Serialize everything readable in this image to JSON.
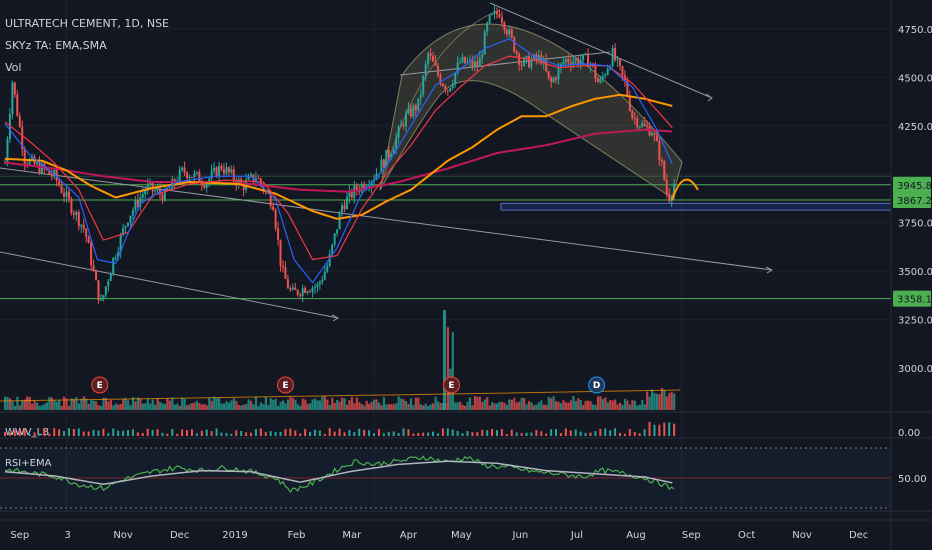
{
  "legend": {
    "title": "ULTRATECH CEMENT, 1D, NSE",
    "indicator": "SKYz TA: EMA,SMA",
    "volume": "Vol"
  },
  "chart_data": {
    "type": "candlestick",
    "title": "ULTRATECH CEMENT, 1D, NSE",
    "x_labels": [
      "Sep",
      "3",
      "Nov",
      "Dec",
      "2019",
      "Feb",
      "Mar",
      "Apr",
      "May",
      "Jun",
      "Jul",
      "Aug",
      "Sep",
      "Oct",
      "Nov",
      "Dec"
    ],
    "price_ticks": [
      4750,
      4500,
      4250,
      4000,
      3750,
      3500,
      3250,
      3000
    ],
    "price_tick_labels": [
      "4750.00",
      "4500.00",
      "4250.00",
      "3750.00",
      "3500.00",
      "3250.00",
      "3000.00"
    ],
    "ylim": [
      2950,
      4870
    ],
    "price_tags": [
      {
        "label": "3945.80",
        "value": 3945.8,
        "color": "#4caf50"
      },
      {
        "label": "3867.25",
        "value": 3867.25,
        "color": "#4caf50"
      },
      {
        "label": "3358.10",
        "value": 3358.1,
        "color": "#4caf50"
      }
    ],
    "horizontal_levels": [
      3945.8,
      3867.25,
      3358.1
    ],
    "support_zone": [
      3815,
      3850
    ],
    "price_anchors": [
      {
        "x": 0,
        "v": 4060
      },
      {
        "x": 0.6,
        "v": 4480
      },
      {
        "x": 1.6,
        "v": 4080
      },
      {
        "x": 4,
        "v": 3990
      },
      {
        "x": 6.5,
        "v": 3710
      },
      {
        "x": 7.4,
        "v": 3430
      },
      {
        "x": 7.8,
        "v": 3330
      },
      {
        "x": 8.8,
        "v": 3560
      },
      {
        "x": 10,
        "v": 3780
      },
      {
        "x": 11.5,
        "v": 3930
      },
      {
        "x": 13,
        "v": 3890
      },
      {
        "x": 14.5,
        "v": 4020
      },
      {
        "x": 16.3,
        "v": 3960
      },
      {
        "x": 17.6,
        "v": 4040
      },
      {
        "x": 19.3,
        "v": 3940
      },
      {
        "x": 20.4,
        "v": 3990
      },
      {
        "x": 21.8,
        "v": 3850
      },
      {
        "x": 22.5,
        "v": 3500
      },
      {
        "x": 23.3,
        "v": 3380
      },
      {
        "x": 24.5,
        "v": 3420
      },
      {
        "x": 25.4,
        "v": 3420
      },
      {
        "x": 26.3,
        "v": 3540
      },
      {
        "x": 27.4,
        "v": 3840
      },
      {
        "x": 28.5,
        "v": 3920
      },
      {
        "x": 30,
        "v": 3990
      },
      {
        "x": 31.5,
        "v": 4140
      },
      {
        "x": 32.5,
        "v": 4290
      },
      {
        "x": 33.6,
        "v": 4360
      },
      {
        "x": 34.4,
        "v": 4620
      },
      {
        "x": 35.4,
        "v": 4490
      },
      {
        "x": 36,
        "v": 4440
      },
      {
        "x": 37,
        "v": 4580
      },
      {
        "x": 38.5,
        "v": 4560
      },
      {
        "x": 39.3,
        "v": 4790
      },
      {
        "x": 40.2,
        "v": 4840
      },
      {
        "x": 41,
        "v": 4720
      },
      {
        "x": 42,
        "v": 4570
      },
      {
        "x": 43.6,
        "v": 4600
      },
      {
        "x": 44.3,
        "v": 4460
      },
      {
        "x": 45.5,
        "v": 4590
      },
      {
        "x": 46.5,
        "v": 4590
      },
      {
        "x": 47.5,
        "v": 4590
      },
      {
        "x": 48.3,
        "v": 4460
      },
      {
        "x": 49.4,
        "v": 4620
      },
      {
        "x": 50.4,
        "v": 4470
      },
      {
        "x": 51,
        "v": 4300
      },
      {
        "x": 52,
        "v": 4240
      },
      {
        "x": 52.6,
        "v": 4230
      },
      {
        "x": 53.3,
        "v": 4080
      },
      {
        "x": 53.9,
        "v": 3870
      },
      {
        "x": 54.4,
        "v": 3950
      }
    ],
    "ema_fast_anchors": [
      {
        "x": 0,
        "v": 4260
      },
      {
        "x": 2,
        "v": 4100
      },
      {
        "x": 4,
        "v": 4000
      },
      {
        "x": 6,
        "v": 3880
      },
      {
        "x": 7.5,
        "v": 3560
      },
      {
        "x": 9,
        "v": 3540
      },
      {
        "x": 11,
        "v": 3850
      },
      {
        "x": 14,
        "v": 3960
      },
      {
        "x": 17,
        "v": 3990
      },
      {
        "x": 20,
        "v": 3990
      },
      {
        "x": 22,
        "v": 3870
      },
      {
        "x": 23.5,
        "v": 3560
      },
      {
        "x": 25,
        "v": 3440
      },
      {
        "x": 27,
        "v": 3620
      },
      {
        "x": 29,
        "v": 3900
      },
      {
        "x": 31,
        "v": 4040
      },
      {
        "x": 33,
        "v": 4250
      },
      {
        "x": 35,
        "v": 4460
      },
      {
        "x": 37,
        "v": 4540
      },
      {
        "x": 39,
        "v": 4650
      },
      {
        "x": 41,
        "v": 4700
      },
      {
        "x": 43,
        "v": 4610
      },
      {
        "x": 45,
        "v": 4560
      },
      {
        "x": 47,
        "v": 4570
      },
      {
        "x": 49,
        "v": 4560
      },
      {
        "x": 51,
        "v": 4450
      },
      {
        "x": 53,
        "v": 4230
      },
      {
        "x": 54.4,
        "v": 4030
      }
    ],
    "ema_mid_anchors": [
      {
        "x": 0,
        "v": 4270
      },
      {
        "x": 2,
        "v": 4170
      },
      {
        "x": 4,
        "v": 4060
      },
      {
        "x": 6,
        "v": 3920
      },
      {
        "x": 8,
        "v": 3660
      },
      {
        "x": 10,
        "v": 3700
      },
      {
        "x": 12,
        "v": 3890
      },
      {
        "x": 15,
        "v": 3950
      },
      {
        "x": 18,
        "v": 3970
      },
      {
        "x": 21,
        "v": 3960
      },
      {
        "x": 23,
        "v": 3800
      },
      {
        "x": 25,
        "v": 3560
      },
      {
        "x": 27,
        "v": 3580
      },
      {
        "x": 29,
        "v": 3820
      },
      {
        "x": 31,
        "v": 4000
      },
      {
        "x": 33,
        "v": 4150
      },
      {
        "x": 35,
        "v": 4330
      },
      {
        "x": 37,
        "v": 4450
      },
      {
        "x": 39,
        "v": 4560
      },
      {
        "x": 41,
        "v": 4610
      },
      {
        "x": 43,
        "v": 4590
      },
      {
        "x": 45,
        "v": 4550
      },
      {
        "x": 47,
        "v": 4560
      },
      {
        "x": 49,
        "v": 4560
      },
      {
        "x": 51,
        "v": 4470
      },
      {
        "x": 53,
        "v": 4330
      },
      {
        "x": 54.4,
        "v": 4230
      }
    ],
    "ema_slow_anchors": [
      {
        "x": 0,
        "v": 4080
      },
      {
        "x": 3,
        "v": 4070
      },
      {
        "x": 5,
        "v": 4020
      },
      {
        "x": 7,
        "v": 3940
      },
      {
        "x": 9,
        "v": 3880
      },
      {
        "x": 12,
        "v": 3930
      },
      {
        "x": 15,
        "v": 3960
      },
      {
        "x": 19,
        "v": 3950
      },
      {
        "x": 22,
        "v": 3900
      },
      {
        "x": 25,
        "v": 3810
      },
      {
        "x": 27,
        "v": 3770
      },
      {
        "x": 29,
        "v": 3790
      },
      {
        "x": 31,
        "v": 3860
      },
      {
        "x": 33,
        "v": 3920
      },
      {
        "x": 36,
        "v": 4070
      },
      {
        "x": 38,
        "v": 4140
      },
      {
        "x": 40,
        "v": 4230
      },
      {
        "x": 42,
        "v": 4300
      },
      {
        "x": 44,
        "v": 4300
      },
      {
        "x": 46,
        "v": 4350
      },
      {
        "x": 48,
        "v": 4390
      },
      {
        "x": 50,
        "v": 4410
      },
      {
        "x": 52,
        "v": 4390
      },
      {
        "x": 54.4,
        "v": 4350
      }
    ],
    "sma_anchors": [
      {
        "x": 0,
        "v": 4060
      },
      {
        "x": 4,
        "v": 4030
      },
      {
        "x": 8,
        "v": 3990
      },
      {
        "x": 12,
        "v": 3960
      },
      {
        "x": 16,
        "v": 3960
      },
      {
        "x": 20,
        "v": 3950
      },
      {
        "x": 24,
        "v": 3920
      },
      {
        "x": 28,
        "v": 3910
      },
      {
        "x": 32,
        "v": 3960
      },
      {
        "x": 36,
        "v": 4030
      },
      {
        "x": 40,
        "v": 4110
      },
      {
        "x": 44,
        "v": 4150
      },
      {
        "x": 48,
        "v": 4210
      },
      {
        "x": 52,
        "v": 4230
      },
      {
        "x": 54.4,
        "v": 4220
      }
    ],
    "volume_markers": [
      {
        "label": "E",
        "x": 7.7
      },
      {
        "label": "E",
        "x": 22.8
      },
      {
        "label": "E",
        "x": 36.3
      },
      {
        "label": "D",
        "x": 48.1
      }
    ],
    "volume_scale_label": "0.00",
    "vwv_label": "WWV_LB",
    "rsi": {
      "label": "RSI+EMA",
      "tick_label": "50.00",
      "anchors": [
        {
          "x": 0,
          "v": 58
        },
        {
          "x": 2,
          "v": 55
        },
        {
          "x": 4,
          "v": 52
        },
        {
          "x": 6,
          "v": 44
        },
        {
          "x": 8,
          "v": 40
        },
        {
          "x": 9.5,
          "v": 48
        },
        {
          "x": 12,
          "v": 56
        },
        {
          "x": 14,
          "v": 60
        },
        {
          "x": 16,
          "v": 57
        },
        {
          "x": 18,
          "v": 60
        },
        {
          "x": 20,
          "v": 56
        },
        {
          "x": 22,
          "v": 50
        },
        {
          "x": 23.3,
          "v": 38
        },
        {
          "x": 25,
          "v": 45
        },
        {
          "x": 27,
          "v": 58
        },
        {
          "x": 28.5,
          "v": 66
        },
        {
          "x": 30,
          "v": 63
        },
        {
          "x": 32,
          "v": 66
        },
        {
          "x": 34,
          "v": 70
        },
        {
          "x": 36,
          "v": 65
        },
        {
          "x": 37.5,
          "v": 70
        },
        {
          "x": 39,
          "v": 62
        },
        {
          "x": 41,
          "v": 60
        },
        {
          "x": 43,
          "v": 56
        },
        {
          "x": 45,
          "v": 54
        },
        {
          "x": 47,
          "v": 51
        },
        {
          "x": 48.5,
          "v": 57
        },
        {
          "x": 50,
          "v": 55
        },
        {
          "x": 52,
          "v": 50
        },
        {
          "x": 53.5,
          "v": 44
        },
        {
          "x": 54.4,
          "v": 38
        }
      ],
      "ema_anchors": [
        {
          "x": 0,
          "v": 56
        },
        {
          "x": 4,
          "v": 52
        },
        {
          "x": 8,
          "v": 44
        },
        {
          "x": 12,
          "v": 52
        },
        {
          "x": 16,
          "v": 57
        },
        {
          "x": 20,
          "v": 56
        },
        {
          "x": 24,
          "v": 46
        },
        {
          "x": 28,
          "v": 56
        },
        {
          "x": 32,
          "v": 63
        },
        {
          "x": 36,
          "v": 66
        },
        {
          "x": 40,
          "v": 64
        },
        {
          "x": 44,
          "v": 57
        },
        {
          "x": 48,
          "v": 54
        },
        {
          "x": 52,
          "v": 51
        },
        {
          "x": 54.4,
          "v": 45
        }
      ]
    },
    "colors": {
      "up": "#26a69a",
      "down": "#ef5350",
      "ema_fast": "#2962ff",
      "ema_mid": "#f23645",
      "ema_slow": "#ff9800",
      "sma": "#c2185b",
      "level": "#4caf50",
      "trend": "#9598a1",
      "rsi": "#4caf50",
      "rsi_ema": "#b2b5be",
      "vol_up": "#26a69a",
      "vol_down": "#ef5350"
    }
  }
}
